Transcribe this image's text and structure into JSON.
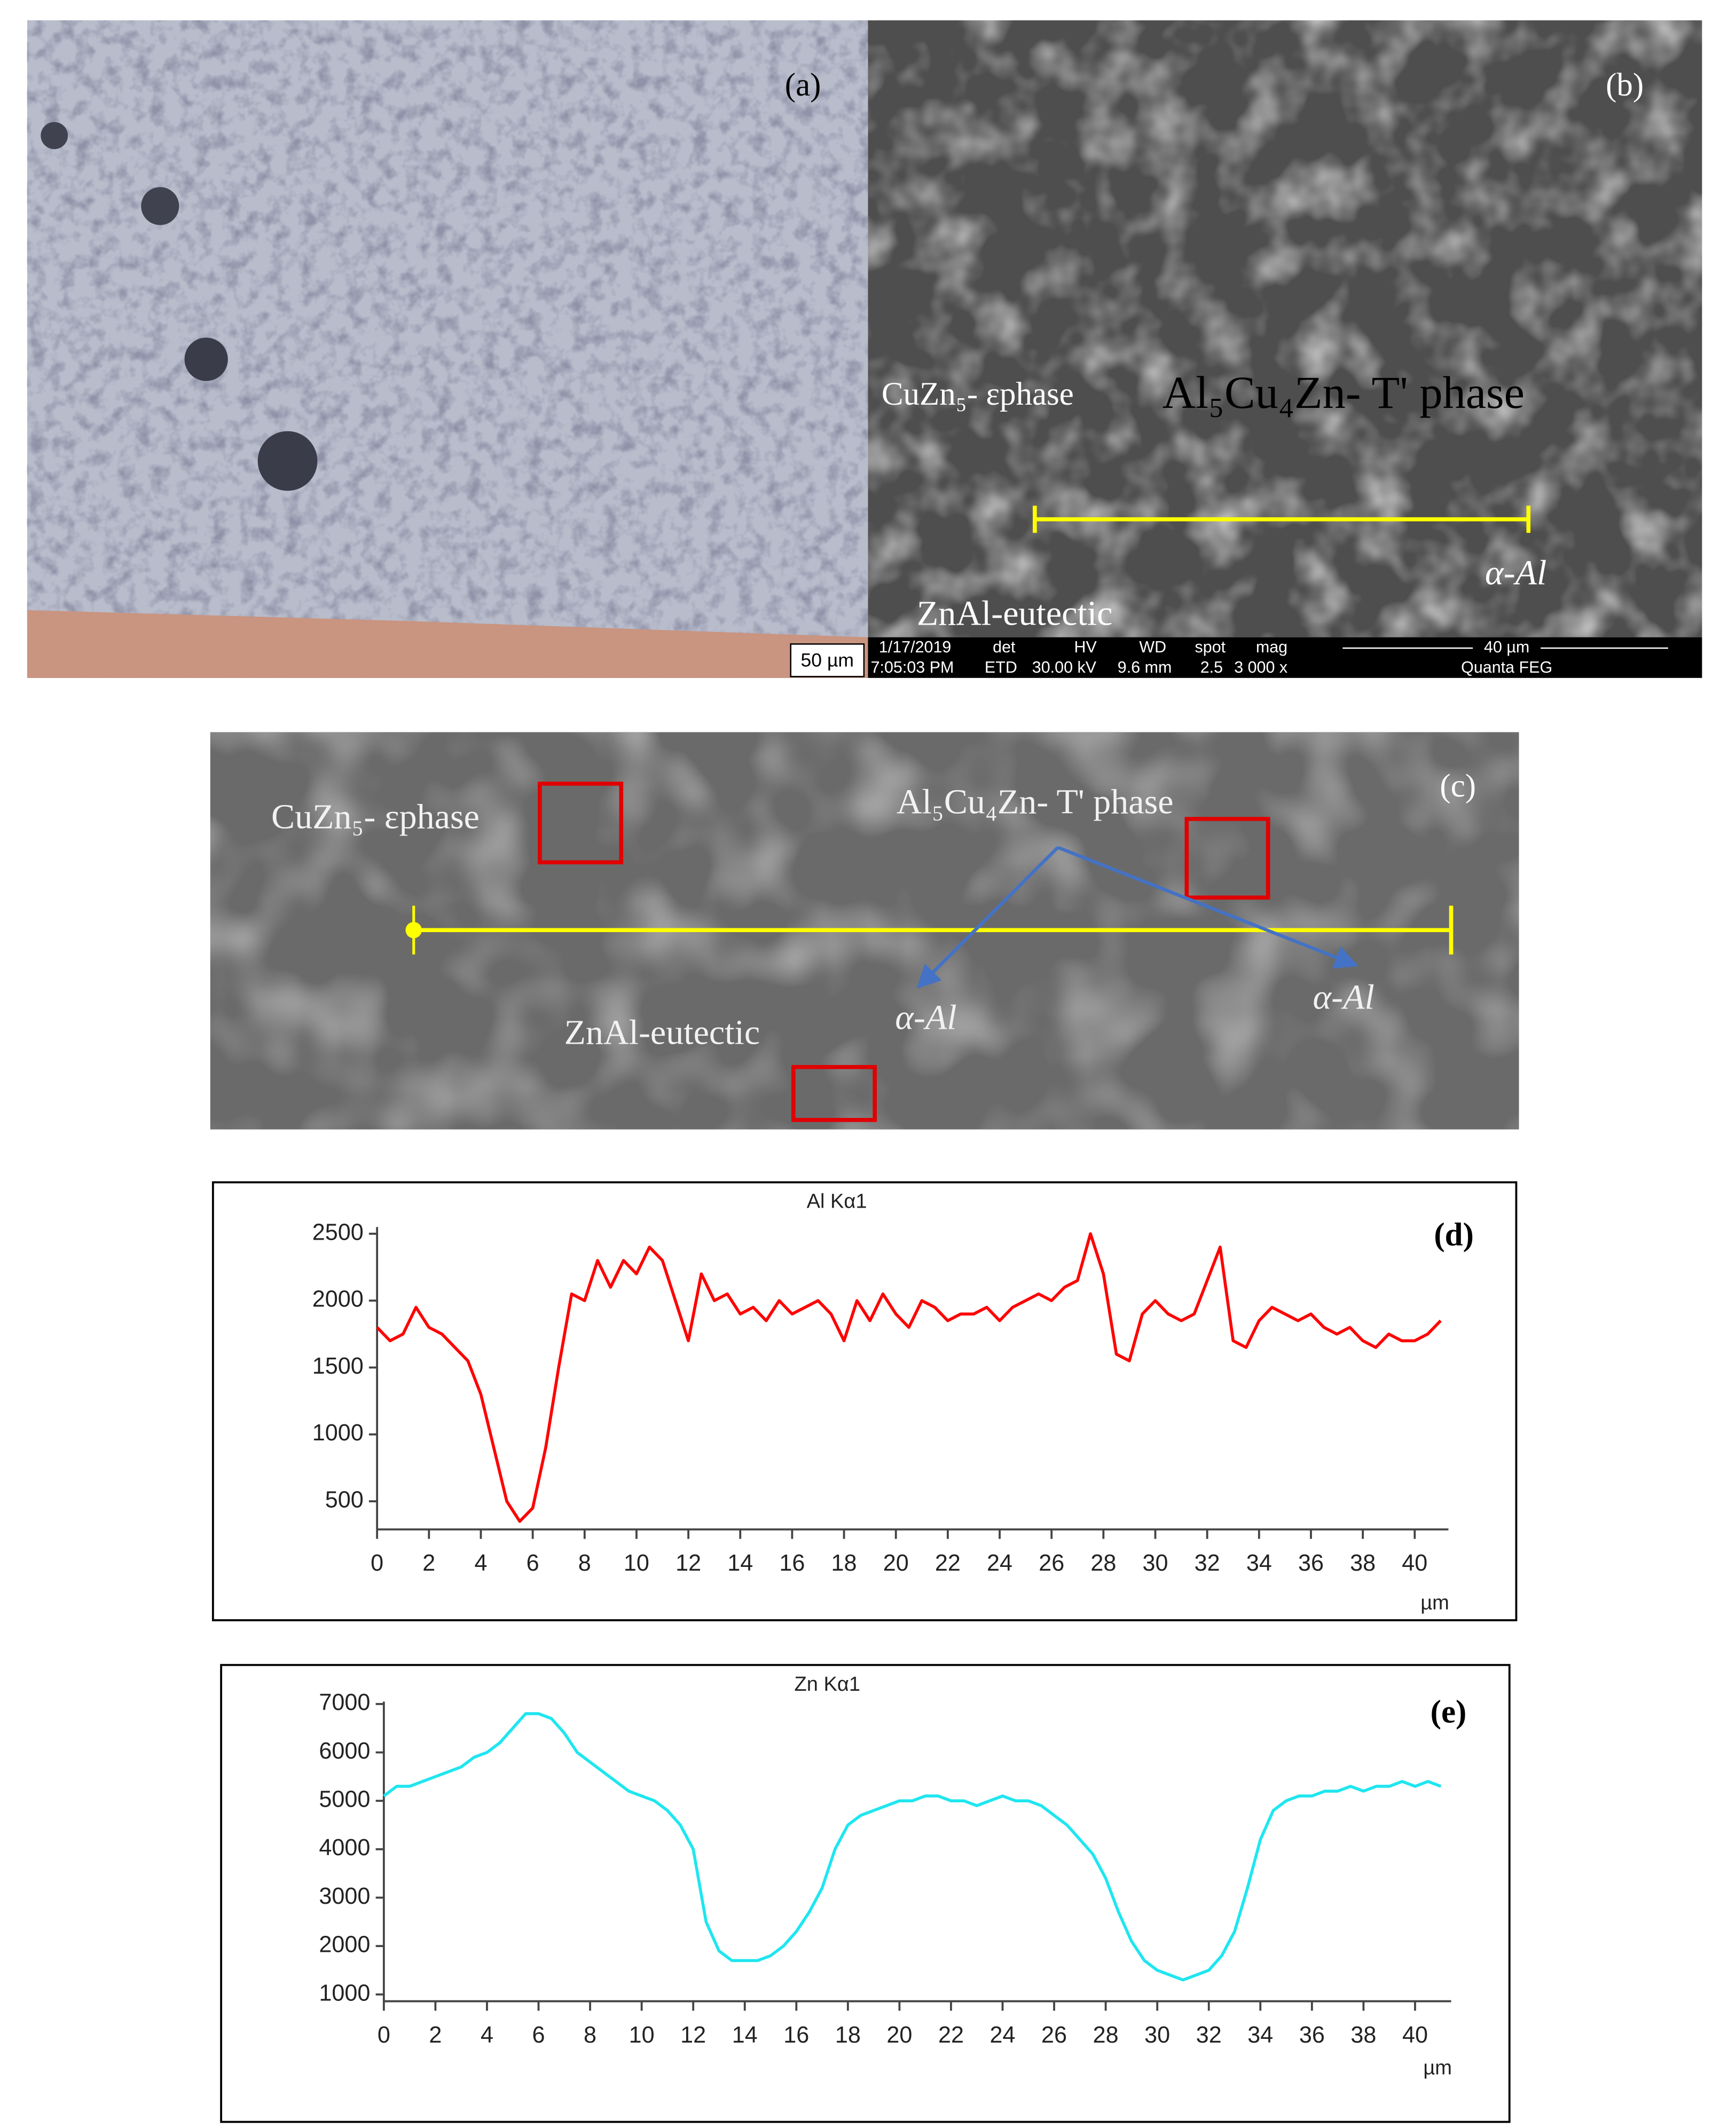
{
  "panels": {
    "a": {
      "label": "(a)",
      "scale_bar": "50 µm"
    },
    "b": {
      "label": "(b)",
      "epsilon_phase": "CuZn₅- εphase",
      "t_phase": "Al₅Cu₄Zn- T' phase",
      "alpha": "α-Al",
      "eutectic": "ZnAl-eutectic",
      "info_bar": {
        "date": "1/17/2019",
        "time": "7:05:03 PM",
        "det_label": "det",
        "det": "ETD",
        "hv_label": "HV",
        "hv": "30.00 kV",
        "wd_label": "WD",
        "wd": "9.6 mm",
        "spot_label": "spot",
        "spot": "2.5",
        "mag_label": "mag",
        "mag": "3 000 x",
        "scale": "40 µm",
        "instrument": "Quanta FEG"
      }
    },
    "c": {
      "label": "(c)",
      "epsilon_phase": "CuZn₅- εphase",
      "t_phase": "Al₅Cu₄Zn- T' phase",
      "alpha_left": "α-Al",
      "alpha_right": "α-Al",
      "eutectic": "ZnAl-eutectic"
    }
  },
  "chart_data": [
    {
      "type": "line",
      "title": "Al Kα1",
      "panel_label": "(d)",
      "x_label": "µm",
      "color": "#ff0000",
      "x": [
        0,
        0.5,
        1,
        1.5,
        2,
        2.5,
        3,
        3.5,
        4,
        4.5,
        5,
        5.5,
        6,
        6.5,
        7,
        7.5,
        8,
        8.5,
        9,
        9.5,
        10,
        10.5,
        11,
        11.5,
        12,
        12.5,
        13,
        13.5,
        14,
        14.5,
        15,
        15.5,
        16,
        16.5,
        17,
        17.5,
        18,
        18.5,
        19,
        19.5,
        20,
        20.5,
        21,
        21.5,
        22,
        22.5,
        23,
        23.5,
        24,
        24.5,
        25,
        25.5,
        26,
        26.5,
        27,
        27.5,
        28,
        28.5,
        29,
        29.5,
        30,
        30.5,
        31,
        31.5,
        32,
        32.5,
        33,
        33.5,
        34,
        34.5,
        35,
        35.5,
        36,
        36.5,
        37,
        37.5,
        38,
        38.5,
        39,
        39.5,
        40,
        40.5,
        41
      ],
      "values": [
        1800,
        1700,
        1750,
        1950,
        1800,
        1750,
        1650,
        1550,
        1300,
        900,
        500,
        350,
        450,
        900,
        1500,
        2050,
        2000,
        2300,
        2100,
        2300,
        2200,
        2400,
        2300,
        2000,
        1700,
        2200,
        2000,
        2050,
        1900,
        1950,
        1850,
        2000,
        1900,
        1950,
        2000,
        1900,
        1700,
        2000,
        1850,
        2050,
        1900,
        1800,
        2000,
        1950,
        1850,
        1900,
        1900,
        1950,
        1850,
        1950,
        2000,
        2050,
        2000,
        2100,
        2150,
        2500,
        2200,
        1600,
        1550,
        1900,
        2000,
        1900,
        1850,
        1900,
        2150,
        2400,
        1700,
        1650,
        1850,
        1950,
        1900,
        1850,
        1900,
        1800,
        1750,
        1800,
        1700,
        1650,
        1750,
        1700,
        1700,
        1750,
        1850
      ],
      "xlim": [
        0,
        41.3
      ],
      "ylim": [
        290,
        2550
      ],
      "xticks": [
        0,
        2,
        4,
        6,
        8,
        10,
        12,
        14,
        16,
        18,
        20,
        22,
        24,
        26,
        28,
        30,
        32,
        34,
        36,
        38,
        40
      ],
      "yticks": [
        500,
        1000,
        1500,
        2000,
        2500
      ]
    },
    {
      "type": "line",
      "title": "Zn Kα1",
      "panel_label": "(e)",
      "x_label": "µm",
      "color": "#1ee6f0",
      "x": [
        0,
        0.5,
        1,
        1.5,
        2,
        2.5,
        3,
        3.5,
        4,
        4.5,
        5,
        5.5,
        6,
        6.5,
        7,
        7.5,
        8,
        8.5,
        9,
        9.5,
        10,
        10.5,
        11,
        11.5,
        12,
        12.5,
        13,
        13.5,
        14,
        14.5,
        15,
        15.5,
        16,
        16.5,
        17,
        17.5,
        18,
        18.5,
        19,
        19.5,
        20,
        20.5,
        21,
        21.5,
        22,
        22.5,
        23,
        23.5,
        24,
        24.5,
        25,
        25.5,
        26,
        26.5,
        27,
        27.5,
        28,
        28.5,
        29,
        29.5,
        30,
        30.5,
        31,
        31.5,
        32,
        32.5,
        33,
        33.5,
        34,
        34.5,
        35,
        35.5,
        36,
        36.5,
        37,
        37.5,
        38,
        38.5,
        39,
        39.5,
        40,
        40.5,
        41
      ],
      "values": [
        5100,
        5300,
        5300,
        5400,
        5500,
        5600,
        5700,
        5900,
        6000,
        6200,
        6500,
        6800,
        6800,
        6700,
        6400,
        6000,
        5800,
        5600,
        5400,
        5200,
        5100,
        5000,
        4800,
        4500,
        4000,
        2500,
        1900,
        1700,
        1700,
        1700,
        1800,
        2000,
        2300,
        2700,
        3200,
        4000,
        4500,
        4700,
        4800,
        4900,
        5000,
        5000,
        5100,
        5100,
        5000,
        5000,
        4900,
        5000,
        5100,
        5000,
        5000,
        4900,
        4700,
        4500,
        4200,
        3900,
        3400,
        2700,
        2100,
        1700,
        1500,
        1400,
        1300,
        1400,
        1500,
        1800,
        2300,
        3200,
        4200,
        4800,
        5000,
        5100,
        5100,
        5200,
        5200,
        5300,
        5200,
        5300,
        5300,
        5400,
        5300,
        5400,
        5300
      ],
      "xlim": [
        0,
        41.4
      ],
      "ylim": [
        860,
        7050
      ],
      "xticks": [
        0,
        2,
        4,
        6,
        8,
        10,
        12,
        14,
        16,
        18,
        20,
        22,
        24,
        26,
        28,
        30,
        32,
        34,
        36,
        38,
        40
      ],
      "yticks": [
        1000,
        2000,
        3000,
        4000,
        5000,
        6000,
        7000
      ]
    }
  ]
}
